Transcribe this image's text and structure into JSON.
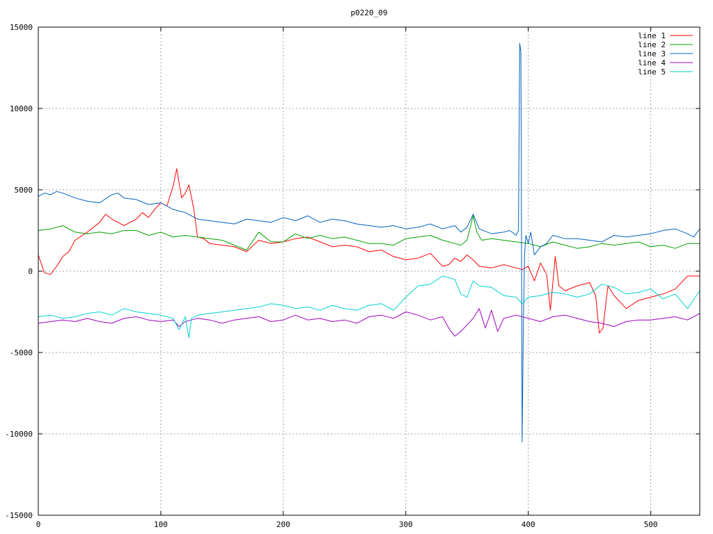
{
  "chart_data": {
    "type": "line",
    "title": "p0220_09",
    "xlabel": "",
    "ylabel": "",
    "xlim": [
      0,
      540
    ],
    "ylim": [
      -15000,
      15000
    ],
    "xticks": [
      0,
      100,
      200,
      300,
      400,
      500
    ],
    "yticks": [
      -15000,
      -10000,
      -5000,
      0,
      5000,
      10000,
      15000
    ],
    "grid": true,
    "legend_position": "top-right",
    "series": [
      {
        "name": "line 1",
        "color": "#ff0000",
        "x": [
          0,
          5,
          10,
          15,
          20,
          25,
          30,
          40,
          50,
          55,
          60,
          70,
          80,
          85,
          90,
          95,
          100,
          105,
          110,
          113,
          117,
          120,
          123,
          127,
          130,
          135,
          140,
          150,
          160,
          170,
          180,
          190,
          200,
          210,
          220,
          230,
          240,
          250,
          260,
          270,
          280,
          290,
          300,
          310,
          320,
          330,
          335,
          340,
          345,
          350,
          355,
          360,
          370,
          380,
          390,
          395,
          400,
          405,
          410,
          415,
          418,
          422,
          425,
          430,
          440,
          450,
          455,
          458,
          461,
          465,
          470,
          480,
          490,
          500,
          510,
          520,
          530,
          540
        ],
        "y": [
          1000,
          -100,
          -200,
          300,
          900,
          1200,
          1900,
          2400,
          3000,
          3500,
          3200,
          2800,
          3200,
          3600,
          3300,
          3800,
          4200,
          4000,
          5200,
          6300,
          4500,
          4800,
          5300,
          3800,
          2100,
          2000,
          1700,
          1600,
          1500,
          1200,
          1900,
          1700,
          1800,
          2000,
          2100,
          1800,
          1500,
          1600,
          1500,
          1200,
          1300,
          900,
          700,
          800,
          1100,
          300,
          400,
          800,
          600,
          1000,
          700,
          300,
          200,
          400,
          200,
          100,
          300,
          -600,
          500,
          -200,
          -2400,
          900,
          -900,
          -1200,
          -900,
          -700,
          -1500,
          -3800,
          -3500,
          -900,
          -1500,
          -2300,
          -1800,
          -1600,
          -1400,
          -1100,
          -300,
          -300
        ]
      },
      {
        "name": "line 2",
        "color": "#00a000",
        "x": [
          0,
          10,
          20,
          30,
          40,
          50,
          60,
          70,
          80,
          90,
          100,
          110,
          120,
          130,
          140,
          150,
          160,
          170,
          180,
          190,
          200,
          210,
          220,
          230,
          240,
          250,
          260,
          270,
          280,
          290,
          300,
          310,
          320,
          330,
          340,
          345,
          350,
          355,
          358,
          362,
          370,
          380,
          390,
          400,
          410,
          420,
          430,
          440,
          450,
          460,
          470,
          480,
          490,
          500,
          510,
          520,
          530,
          540
        ],
        "y": [
          2500,
          2600,
          2800,
          2400,
          2300,
          2400,
          2300,
          2500,
          2500,
          2200,
          2400,
          2100,
          2200,
          2100,
          2000,
          1900,
          1600,
          1300,
          2400,
          1800,
          1800,
          2300,
          2000,
          2200,
          2000,
          2100,
          1900,
          1700,
          1700,
          1600,
          2000,
          2100,
          2200,
          1900,
          1700,
          1600,
          1900,
          3400,
          2400,
          1900,
          2000,
          1900,
          1800,
          1700,
          1500,
          1800,
          1600,
          1400,
          1500,
          1700,
          1600,
          1700,
          1800,
          1500,
          1600,
          1400,
          1700,
          1700
        ]
      },
      {
        "name": "line 3",
        "color": "#0060c0",
        "x": [
          0,
          5,
          10,
          15,
          20,
          30,
          40,
          50,
          60,
          65,
          70,
          80,
          90,
          100,
          110,
          120,
          130,
          140,
          150,
          160,
          170,
          180,
          190,
          200,
          210,
          220,
          230,
          240,
          250,
          260,
          270,
          280,
          290,
          300,
          310,
          320,
          330,
          340,
          345,
          350,
          355,
          360,
          370,
          380,
          385,
          390,
          392,
          393,
          394,
          395,
          396,
          397,
          398,
          400,
          402,
          405,
          410,
          415,
          420,
          430,
          440,
          450,
          460,
          470,
          480,
          490,
          500,
          510,
          520,
          530,
          535,
          540
        ],
        "y": [
          4600,
          4800,
          4700,
          4900,
          4800,
          4500,
          4300,
          4200,
          4700,
          4800,
          4500,
          4400,
          4100,
          4200,
          3800,
          3600,
          3200,
          3100,
          3000,
          2900,
          3200,
          3100,
          3000,
          3300,
          3100,
          3400,
          3000,
          3200,
          3100,
          2900,
          2800,
          2700,
          2800,
          2600,
          2700,
          2900,
          2600,
          2800,
          2400,
          2700,
          3500,
          2600,
          2300,
          2400,
          2500,
          2200,
          2500,
          14000,
          13500,
          -10500,
          -3000,
          1000,
          2200,
          1700,
          2400,
          1000,
          1500,
          1700,
          2200,
          2000,
          2000,
          1900,
          1800,
          2200,
          2100,
          2200,
          2300,
          2500,
          2600,
          2300,
          2100,
          2600
        ]
      },
      {
        "name": "line 4",
        "color": "#a000c0",
        "x": [
          0,
          10,
          20,
          30,
          40,
          50,
          60,
          70,
          80,
          90,
          100,
          110,
          115,
          120,
          125,
          130,
          140,
          150,
          160,
          170,
          180,
          190,
          200,
          210,
          220,
          230,
          240,
          250,
          260,
          270,
          280,
          290,
          300,
          310,
          320,
          330,
          335,
          340,
          345,
          350,
          355,
          360,
          365,
          370,
          375,
          380,
          390,
          400,
          410,
          420,
          430,
          440,
          450,
          460,
          470,
          480,
          490,
          500,
          510,
          520,
          530,
          540
        ],
        "y": [
          -3200,
          -3100,
          -3000,
          -3100,
          -2900,
          -3100,
          -3200,
          -2900,
          -2800,
          -3000,
          -3100,
          -3000,
          -3400,
          -3100,
          -3000,
          -2900,
          -3000,
          -3200,
          -3000,
          -2900,
          -2800,
          -3100,
          -3000,
          -2700,
          -3000,
          -2900,
          -3100,
          -3000,
          -3200,
          -2800,
          -2700,
          -2900,
          -2500,
          -2700,
          -3000,
          -2800,
          -3500,
          -4000,
          -3700,
          -3300,
          -2900,
          -2300,
          -3500,
          -2400,
          -3700,
          -2900,
          -2700,
          -2900,
          -3100,
          -2800,
          -2700,
          -2900,
          -3100,
          -3200,
          -3400,
          -3100,
          -3000,
          -3000,
          -2900,
          -2800,
          -3000,
          -2600
        ]
      },
      {
        "name": "line 5",
        "color": "#00d0d0",
        "x": [
          0,
          10,
          20,
          30,
          40,
          50,
          60,
          70,
          80,
          90,
          100,
          110,
          115,
          120,
          123,
          125,
          130,
          140,
          150,
          160,
          170,
          180,
          190,
          200,
          210,
          220,
          230,
          240,
          250,
          260,
          270,
          280,
          290,
          300,
          310,
          320,
          330,
          340,
          345,
          350,
          355,
          360,
          370,
          380,
          390,
          395,
          400,
          410,
          420,
          430,
          440,
          450,
          460,
          470,
          480,
          490,
          500,
          510,
          520,
          530,
          540
        ],
        "y": [
          -2800,
          -2700,
          -2900,
          -2800,
          -2600,
          -2500,
          -2700,
          -2300,
          -2500,
          -2600,
          -2700,
          -2900,
          -3600,
          -2800,
          -4100,
          -2900,
          -2700,
          -2600,
          -2500,
          -2400,
          -2300,
          -2200,
          -2000,
          -2100,
          -2300,
          -2200,
          -2400,
          -2100,
          -2300,
          -2400,
          -2100,
          -2000,
          -2400,
          -1600,
          -900,
          -800,
          -300,
          -500,
          -1400,
          -1600,
          -600,
          -900,
          -1000,
          -1500,
          -1600,
          -2000,
          -1600,
          -1500,
          -1300,
          -1400,
          -1600,
          -1400,
          -800,
          -1000,
          -1400,
          -1300,
          -1100,
          -1700,
          -1400,
          -2300,
          -1200
        ]
      }
    ]
  }
}
